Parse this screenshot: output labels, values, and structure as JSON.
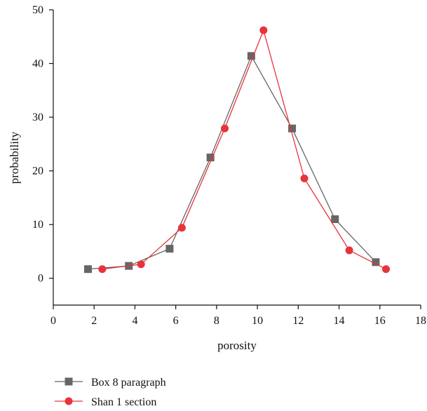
{
  "chart_data": {
    "type": "line",
    "xlabel": "porosity",
    "ylabel": "probability",
    "xlim": [
      0,
      18
    ],
    "ylim": [
      -5,
      50
    ],
    "xticks": [
      "0",
      "2",
      "4",
      "6",
      "8",
      "10",
      "12",
      "14",
      "16",
      "18"
    ],
    "yticks": [
      "0",
      "10",
      "20",
      "30",
      "40",
      "50"
    ],
    "legend_position": "bottom-left",
    "series": [
      {
        "name": "Box 8 paragraph",
        "color": "#666666",
        "marker": "square",
        "x": [
          1.7,
          3.7,
          5.7,
          7.7,
          9.7,
          11.7,
          13.8,
          15.8
        ],
        "y": [
          1.7,
          2.3,
          5.5,
          22.5,
          41.4,
          27.9,
          11.0,
          3.0
        ]
      },
      {
        "name": "Shan 1 section",
        "color": "#e8333a",
        "marker": "circle",
        "x": [
          2.4,
          4.3,
          6.3,
          8.4,
          10.3,
          12.3,
          14.5,
          16.3
        ],
        "y": [
          1.7,
          2.6,
          9.4,
          27.9,
          46.2,
          18.6,
          5.2,
          1.7
        ]
      }
    ]
  }
}
